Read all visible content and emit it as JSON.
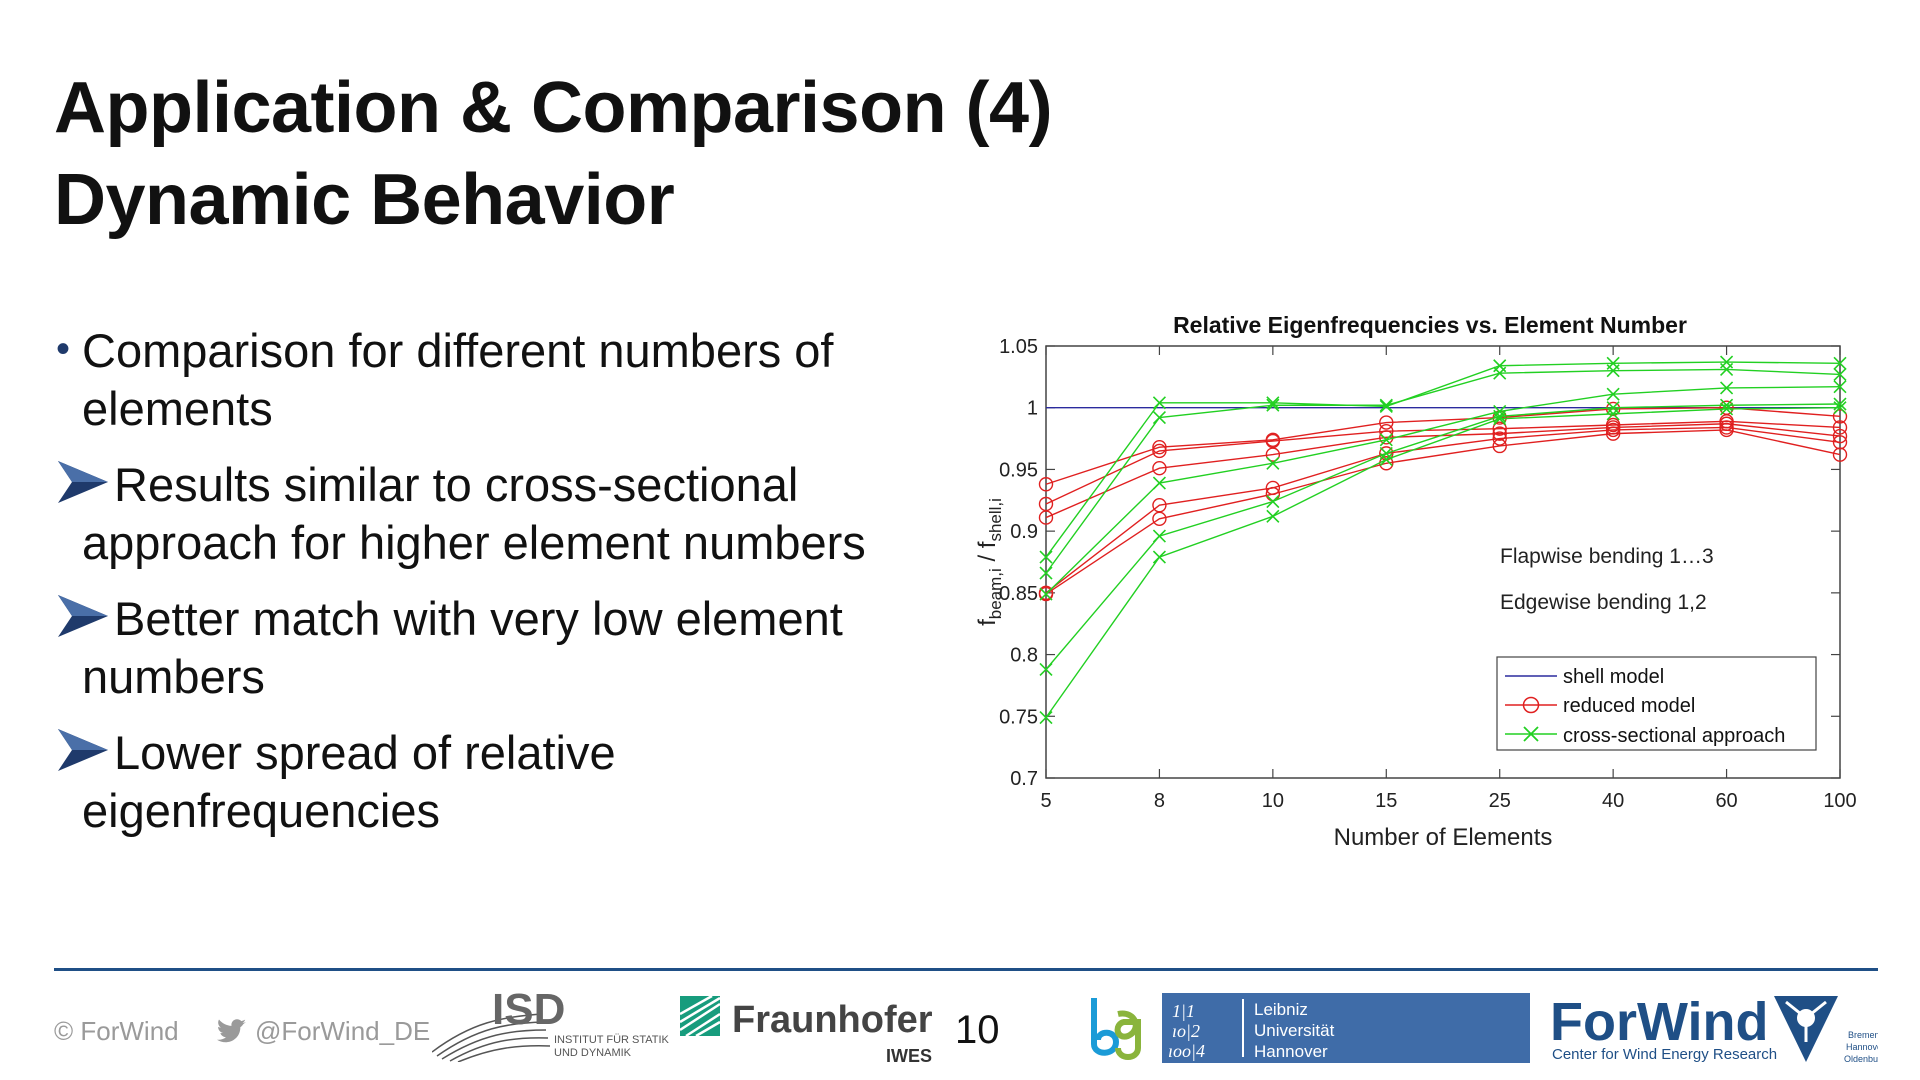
{
  "slide": {
    "title_line1": "Application & Comparison (4)",
    "title_line2": "Dynamic Behavior",
    "bullets": [
      {
        "marker": "dot",
        "text_line1": "Comparison for different numbers of",
        "text_line2": "elements"
      },
      {
        "marker": "arrow",
        "text_line1": "Results similar to cross-sectional",
        "text_line2": "approach for higher element numbers"
      },
      {
        "marker": "arrow",
        "text_line1": "Better match with very low element",
        "text_line2": "numbers"
      },
      {
        "marker": "arrow",
        "text_line1": "Lower spread of relative",
        "text_line2": "eigenfrequencies"
      }
    ]
  },
  "footer": {
    "copyright": "© ForWind",
    "twitter_handle": "@ForWind_DE",
    "page_number": "10",
    "logos": {
      "isd": {
        "mark": "ISD",
        "line1": "INSTITUT FÜR STATIK",
        "line2": "UND DYNAMIK"
      },
      "fraunhofer": {
        "name": "Fraunhofer",
        "sub": "IWES"
      },
      "leibniz": {
        "line1": "Leibniz",
        "line2": "Universität",
        "line3": "Hannover"
      },
      "forwind": {
        "name": "ForWind",
        "sub": "Center for Wind Energy Research",
        "cities": [
          "Bremen",
          "Hannover",
          "Oldenburg"
        ]
      }
    }
  },
  "colors": {
    "shell": "#2b2b9e",
    "reduced": "#e02020",
    "cross": "#22d022",
    "accent": "#1f4f86"
  },
  "chart_data": {
    "type": "line",
    "title": "Relative Eigenfrequencies vs. Element Number",
    "xlabel": "Number of Elements",
    "ylabel_main": "f",
    "ylabel_sub1": "beam,i",
    "ylabel_mid": " / f",
    "ylabel_sub2": "shell,i",
    "x": [
      "5",
      "8",
      "10",
      "15",
      "25",
      "40",
      "60",
      "100"
    ],
    "x_scale": "categorical (equally spaced)",
    "ylim": [
      0.7,
      1.05
    ],
    "yticks": [
      "0.7",
      "0.75",
      "0.8",
      "0.85",
      "0.9",
      "0.95",
      "1",
      "1.05"
    ],
    "annotations": [
      "Flapwise bending 1…3",
      "Edgewise bending 1,2"
    ],
    "legend": {
      "position": "bottom-right",
      "entries": [
        "shell model",
        "reduced model",
        "cross-sectional approach"
      ]
    },
    "series": [
      {
        "group": "shell",
        "values": [
          1,
          1,
          1,
          1,
          1,
          1,
          1,
          1
        ]
      },
      {
        "group": "reduced",
        "values": [
          0.938,
          0.968,
          0.974,
          0.988,
          0.992,
          0.999,
          1.0,
          0.993
        ]
      },
      {
        "group": "reduced",
        "values": [
          0.922,
          0.965,
          0.973,
          0.981,
          0.983,
          0.986,
          0.989,
          0.984
        ]
      },
      {
        "group": "reduced",
        "values": [
          0.911,
          0.951,
          0.962,
          0.976,
          0.979,
          0.984,
          0.987,
          0.977
        ]
      },
      {
        "group": "reduced",
        "values": [
          0.85,
          0.921,
          0.935,
          0.963,
          0.975,
          0.982,
          0.984,
          0.972
        ]
      },
      {
        "group": "reduced",
        "values": [
          0.849,
          0.91,
          0.93,
          0.955,
          0.969,
          0.979,
          0.982,
          0.962
        ]
      },
      {
        "group": "cross",
        "values": [
          0.879,
          1.004,
          1.004,
          1.001,
          1.034,
          1.036,
          1.037,
          1.036
        ]
      },
      {
        "group": "cross",
        "values": [
          0.866,
          0.992,
          1.002,
          1.002,
          1.028,
          1.03,
          1.031,
          1.027
        ]
      },
      {
        "group": "cross",
        "values": [
          0.849,
          0.939,
          0.955,
          0.974,
          0.997,
          1.011,
          1.016,
          1.017
        ]
      },
      {
        "group": "cross",
        "values": [
          0.788,
          0.896,
          0.924,
          0.963,
          0.993,
          1.0,
          1.002,
          1.003
        ]
      },
      {
        "group": "cross",
        "values": [
          0.749,
          0.879,
          0.912,
          0.958,
          0.991,
          0.995,
          0.999,
          1.0
        ]
      }
    ]
  }
}
